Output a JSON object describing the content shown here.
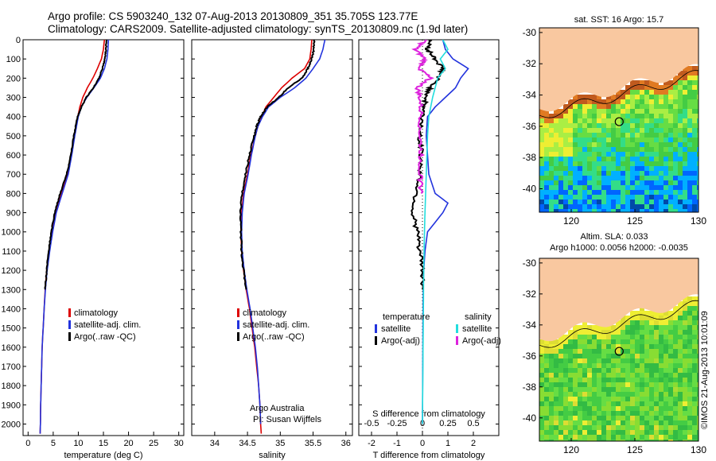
{
  "header": {
    "line1": "Argo profile: CS 5903240_132 07-Aug-2013 20130809_351 35.705S 123.77E",
    "line2": "Climatology: CARS2009. Satellite-adjusted climatology: synTS_20130809.nc (1.9d later)"
  },
  "stamp": "©IMOS 21-Aug-2013 10:01:09",
  "colors": {
    "clim": "#dd0000",
    "sat": "#2233dd",
    "argo": "#000000",
    "cyan": "#22dddd",
    "magenta": "#dd22dd"
  },
  "chart_data": [
    {
      "type": "line",
      "xlabel": "temperature (deg C)",
      "xlim": [
        -1,
        31
      ],
      "ylim": [
        2060,
        0
      ],
      "xticks": [
        "0",
        "5",
        "10",
        "15",
        "20",
        "25",
        "30"
      ],
      "yticks": [
        "0",
        "100",
        "200",
        "300",
        "400",
        "500",
        "600",
        "700",
        "800",
        "900",
        "1000",
        "1100",
        "1200",
        "1300",
        "1400",
        "1500",
        "1600",
        "1700",
        "1800",
        "1900",
        "2000"
      ],
      "legend": [
        "climatology",
        "satellite-adj. clim.",
        "Argo(..raw -QC)"
      ],
      "series": [
        {
          "name": "climatology",
          "color_key": "clim",
          "depth": [
            0,
            50,
            100,
            150,
            200,
            250,
            300,
            350,
            400,
            500,
            600,
            700,
            800,
            900,
            1000,
            1100,
            1200,
            1300,
            1400,
            1500,
            1600,
            1700,
            1800,
            1900,
            2000,
            2050
          ],
          "values": [
            15.2,
            15.0,
            14.6,
            13.8,
            12.9,
            11.8,
            10.9,
            10.3,
            9.9,
            9.2,
            8.5,
            7.8,
            6.6,
            5.5,
            4.8,
            4.2,
            3.7,
            3.4,
            3.2,
            3.0,
            2.8,
            2.7,
            2.6,
            2.5,
            2.45,
            2.4
          ]
        },
        {
          "name": "satellite-adj. clim.",
          "color_key": "sat",
          "depth": [
            0,
            50,
            100,
            150,
            200,
            250,
            300,
            350,
            400,
            500,
            600,
            700,
            800,
            900,
            1000,
            1100,
            1200,
            1300,
            1400,
            1500,
            1600,
            1700,
            1800,
            1900,
            2000,
            2050
          ],
          "values": [
            16.0,
            15.9,
            15.7,
            15.2,
            14.4,
            13.1,
            11.7,
            10.6,
            10.0,
            9.3,
            8.7,
            8.0,
            6.8,
            5.6,
            4.9,
            4.3,
            3.8,
            3.45,
            3.2,
            3.0,
            2.8,
            2.7,
            2.6,
            2.5,
            2.45,
            2.4
          ]
        },
        {
          "name": "Argo(..raw -QC)",
          "color_key": "argo",
          "depth": [
            0,
            50,
            100,
            150,
            200,
            250,
            300,
            350,
            400,
            500,
            600,
            700,
            800,
            900,
            1000,
            1100,
            1200,
            1300
          ],
          "values": [
            15.6,
            15.5,
            15.3,
            14.8,
            14.1,
            13.0,
            11.6,
            10.6,
            9.9,
            9.1,
            8.5,
            7.7,
            6.4,
            5.3,
            4.6,
            4.1,
            3.7,
            3.4
          ]
        }
      ]
    },
    {
      "type": "line",
      "xlabel": "salinity",
      "xlim": [
        33.65,
        36.1
      ],
      "ylim": [
        2060,
        0
      ],
      "xticks": [
        "34",
        "34.5",
        "35",
        "35.5",
        "36"
      ],
      "legend": [
        "climatology",
        "satellite-adj. clim.",
        "Argo(..raw -QC)"
      ],
      "annotation": [
        "Argo Australia",
        "PI: Susan Wijffels"
      ],
      "series": [
        {
          "name": "climatology",
          "color_key": "clim",
          "depth": [
            0,
            50,
            100,
            150,
            200,
            250,
            300,
            350,
            400,
            450,
            500,
            600,
            700,
            800,
            900,
            1000,
            1100,
            1200,
            1300,
            1400,
            1500,
            1600,
            1700,
            1800,
            1900,
            2000,
            2050
          ],
          "values": [
            35.48,
            35.47,
            35.45,
            35.37,
            35.18,
            35.02,
            34.9,
            34.78,
            34.72,
            34.66,
            34.62,
            34.55,
            34.5,
            34.44,
            34.41,
            34.4,
            34.41,
            34.44,
            34.48,
            34.53,
            34.57,
            34.61,
            34.64,
            34.67,
            34.69,
            34.7,
            34.71
          ]
        },
        {
          "name": "satellite-adj. clim.",
          "color_key": "sat",
          "depth": [
            0,
            50,
            100,
            150,
            200,
            250,
            300,
            350,
            400,
            450,
            500,
            600,
            700,
            800,
            900,
            1000,
            1100,
            1200,
            1300,
            1400,
            1500,
            1600,
            1700,
            1800,
            1900,
            2000
          ],
          "values": [
            35.68,
            35.65,
            35.6,
            35.5,
            35.39,
            35.22,
            35.0,
            34.82,
            34.73,
            34.66,
            34.62,
            34.56,
            34.51,
            34.45,
            34.42,
            34.41,
            34.42,
            34.45,
            34.49,
            34.54,
            34.58,
            34.62,
            34.65,
            34.67,
            34.69,
            34.7
          ]
        },
        {
          "name": "Argo(..raw -QC)",
          "color_key": "argo",
          "depth": [
            0,
            50,
            100,
            150,
            200,
            250,
            300,
            350,
            400,
            450,
            500,
            600,
            700,
            800,
            900,
            1000,
            1100,
            1200,
            1300
          ],
          "values": [
            35.52,
            35.51,
            35.48,
            35.42,
            35.33,
            35.12,
            34.98,
            34.8,
            34.7,
            34.64,
            34.6,
            34.53,
            34.47,
            34.42,
            34.39,
            34.4,
            34.41,
            34.44,
            34.48
          ]
        }
      ]
    },
    {
      "type": "line",
      "xlabel": "T difference from climatology",
      "xlabel_top": "S difference from climatology",
      "xlim": [
        -2.5,
        3
      ],
      "ylim": [
        2060,
        0
      ],
      "xticks": [
        "-2",
        "-1",
        "0",
        "1",
        "2"
      ],
      "xticks_top": [
        "-0.5",
        "-0.25",
        "0",
        "0.25",
        "0.5"
      ],
      "legend_left": [
        "temperature",
        "satellite",
        "Argo(-adj)"
      ],
      "legend_right": [
        "salinity",
        "satellite",
        "Argo(-adj)"
      ],
      "series": [
        {
          "name": "satellite",
          "color_key": "sat",
          "depth": [
            0,
            50,
            100,
            150,
            200,
            250,
            300,
            350,
            400,
            500,
            600,
            700,
            800,
            850,
            900,
            1000,
            1100,
            1200,
            1300,
            1500,
            2000
          ],
          "values": [
            0.8,
            0.9,
            1.2,
            1.8,
            1.5,
            1.3,
            0.9,
            0.5,
            0.2,
            0.15,
            0.2,
            0.25,
            0.5,
            1.0,
            0.8,
            0.2,
            0.1,
            0.05,
            0.03,
            0.02,
            0.0
          ]
        },
        {
          "name": "Argo(-adj)",
          "color_key": "argo",
          "depth": [
            0,
            50,
            100,
            150,
            200,
            250,
            300,
            350,
            400,
            500,
            600,
            700,
            800,
            900,
            1000,
            1100,
            1200,
            1300
          ],
          "values": [
            0.3,
            0.2,
            0.5,
            0.8,
            0.6,
            0.3,
            0.15,
            0.05,
            0.0,
            -0.1,
            -0.05,
            -0.1,
            -0.25,
            -0.4,
            -0.2,
            -0.1,
            0.0,
            0.0
          ]
        },
        {
          "name": "satellite",
          "color_key": "cyan",
          "depth": [
            0,
            50,
            100,
            150,
            200,
            250,
            300,
            400,
            500,
            700,
            900,
            1000,
            1200,
            1500,
            2000
          ],
          "values": [
            0.8,
            1.0,
            0.7,
            0.9,
            0.6,
            0.5,
            0.4,
            0.25,
            0.2,
            0.15,
            0.1,
            0.08,
            0.05,
            0.03,
            0.0
          ]
        },
        {
          "name": "Argo(-adj)",
          "color_key": "magenta",
          "depth": [
            0,
            50,
            100,
            150,
            200,
            250,
            300,
            400,
            500,
            600,
            700,
            800
          ],
          "values": [
            0.15,
            -0.3,
            0.1,
            -0.1,
            0.3,
            -0.2,
            -0.1,
            -0.05,
            -0.1,
            -0.05,
            -0.1,
            -0.05
          ]
        }
      ]
    },
    {
      "type": "heatmap",
      "title": "sat. SST: 16 Argo: 15.7",
      "xlim": [
        117.5,
        130
      ],
      "ylim": [
        -41.5,
        -29.7
      ],
      "xticks": [
        "120",
        "125",
        "130"
      ],
      "yticks": [
        "-30",
        "-32",
        "-34",
        "-36",
        "-38",
        "-40"
      ],
      "marker": {
        "lon": 123.77,
        "lat": -35.705
      }
    },
    {
      "type": "heatmap",
      "title": "Altim. SLA: 0.033",
      "subtitle": "Argo h1000: 0.0056 h2000: -0.0035",
      "xlim": [
        117.5,
        130
      ],
      "ylim": [
        -41.5,
        -29.7
      ],
      "xticks": [
        "120",
        "125",
        "130"
      ],
      "yticks": [
        "-30",
        "-32",
        "-34",
        "-36",
        "-38",
        "-40"
      ],
      "marker": {
        "lon": 123.77,
        "lat": -35.705
      }
    }
  ]
}
